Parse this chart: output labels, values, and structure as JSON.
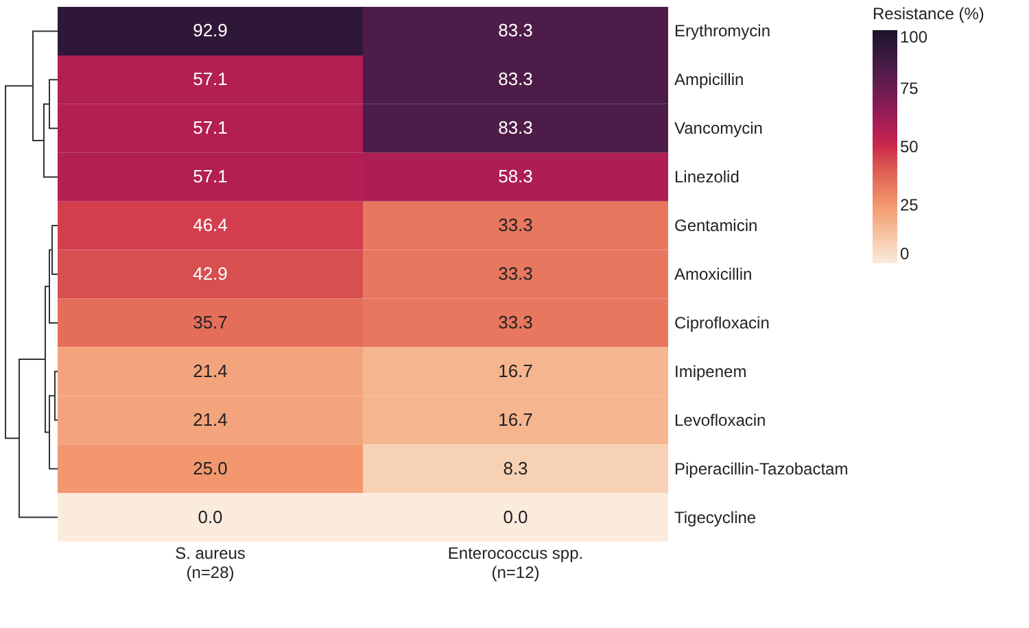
{
  "chart_data": {
    "type": "heatmap",
    "clabel": "Resistance (%)",
    "categories": [
      "S. aureus\n(n=28)",
      "Enterococcus spp.\n(n=12)"
    ],
    "y_categories": [
      "Erythromycin",
      "Ampicillin",
      "Vancomycin",
      "Linezolid",
      "Gentamicin",
      "Amoxicillin",
      "Ciprofloxacin",
      "Imipenem",
      "Levofloxacin",
      "Piperacillin-Tazobactam",
      "Tigecycline"
    ],
    "cells": [
      [
        92.9,
        83.3
      ],
      [
        57.1,
        83.3
      ],
      [
        57.1,
        83.3
      ],
      [
        57.1,
        58.3
      ],
      [
        46.4,
        33.3
      ],
      [
        42.9,
        33.3
      ],
      [
        35.7,
        33.3
      ],
      [
        21.4,
        16.7
      ],
      [
        21.4,
        16.7
      ],
      [
        25.0,
        8.3
      ],
      [
        0.0,
        0.0
      ]
    ],
    "cell_labels": [
      [
        "92.9",
        "83.3"
      ],
      [
        "57.1",
        "83.3"
      ],
      [
        "57.1",
        "83.3"
      ],
      [
        "57.1",
        "58.3"
      ],
      [
        "46.4",
        "33.3"
      ],
      [
        "42.9",
        "33.3"
      ],
      [
        "35.7",
        "33.3"
      ],
      [
        "21.4",
        "16.7"
      ],
      [
        "21.4",
        "16.7"
      ],
      [
        "25.0",
        "8.3"
      ],
      [
        "0.0",
        "0.0"
      ]
    ],
    "clim": [
      0,
      100
    ],
    "cticks": [
      0,
      25,
      50,
      75,
      100
    ]
  }
}
